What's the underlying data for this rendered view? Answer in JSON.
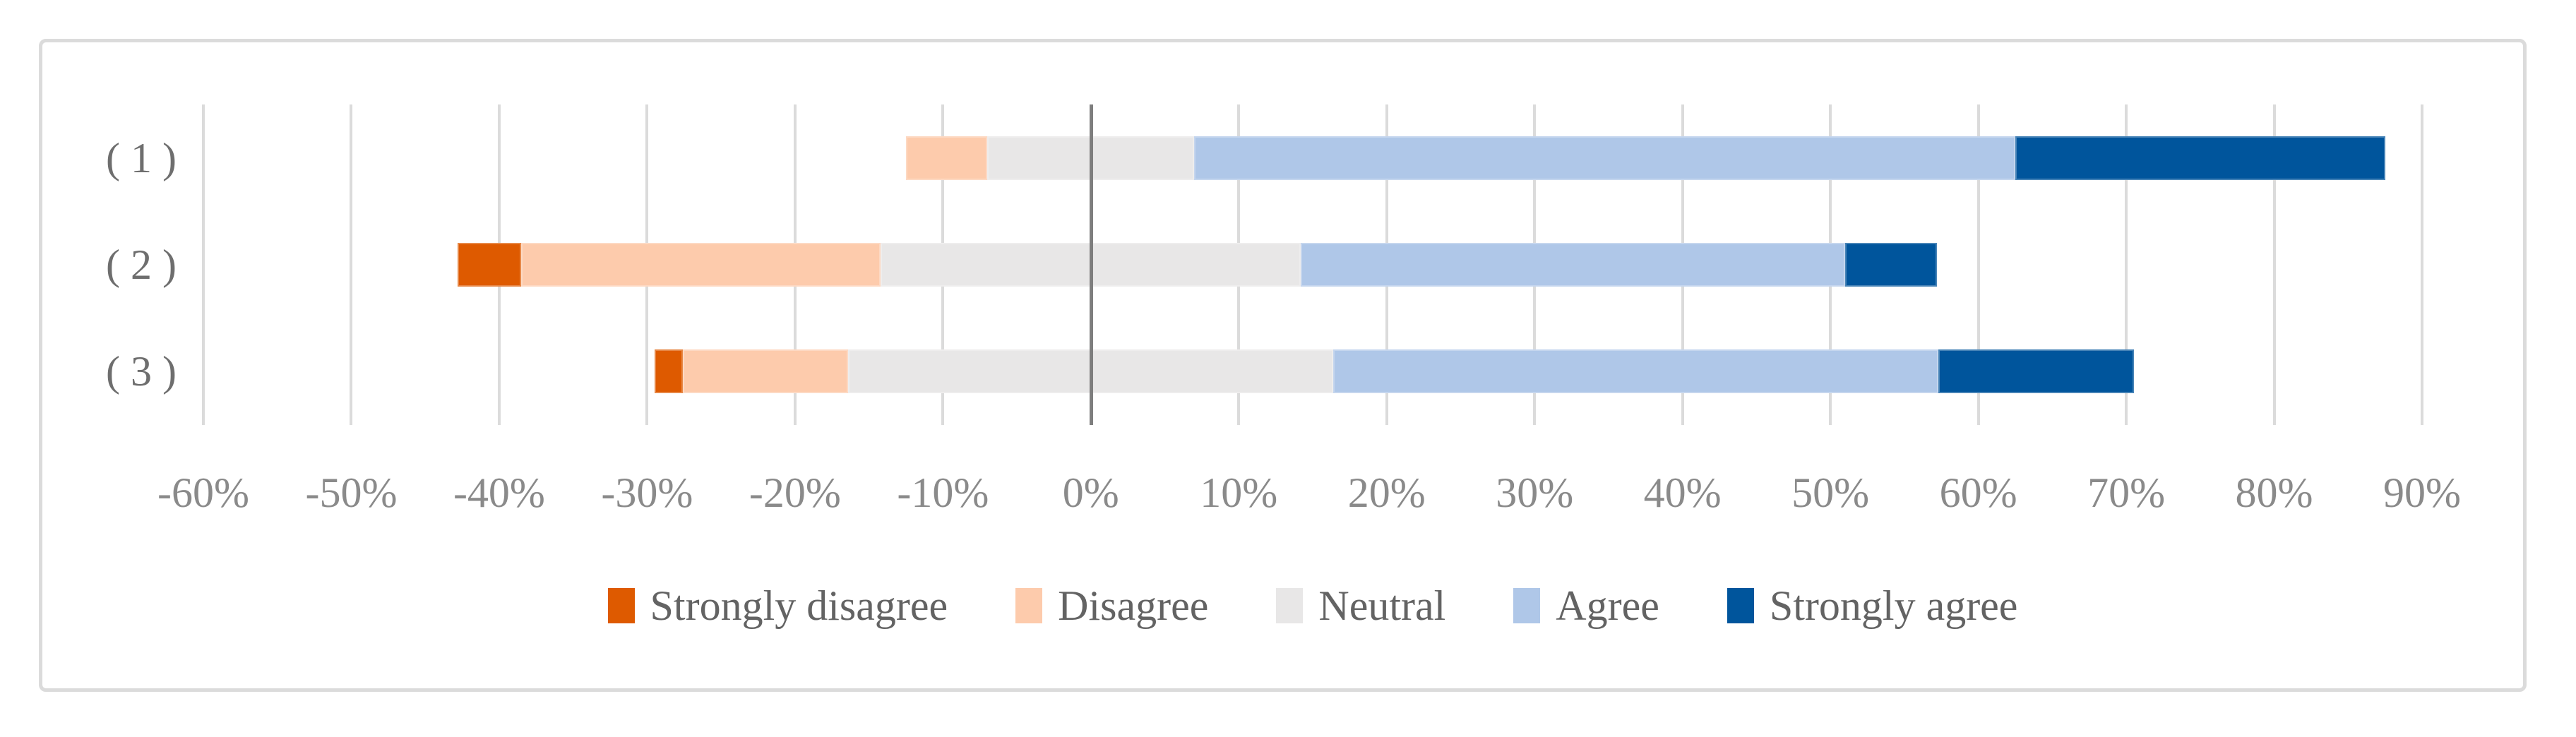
{
  "figure": {
    "background": "#ffffff",
    "border_color": "#DBDBDB"
  },
  "chart_data": {
    "type": "bar",
    "orientation": "horizontal",
    "subtype": "diverging-stacked-likert",
    "title": "",
    "xlabel": "",
    "ylabel": "",
    "categories": [
      "( 1 )",
      "( 2 )",
      "( 3 )"
    ],
    "series": [
      {
        "name": "Strongly disagree",
        "color": "#DE5A00",
        "values": [
          0,
          4.3,
          1.9
        ]
      },
      {
        "name": "Disagree",
        "color": "#FDCBAC",
        "values": [
          5.5,
          24.3,
          11.2
        ]
      },
      {
        "name": "Neutral",
        "color": "#E8E7E7",
        "values": [
          14.0,
          28.4,
          32.8
        ]
      },
      {
        "name": "Agree",
        "color": "#AFC7E8",
        "values": [
          55.5,
          36.8,
          40.9
        ]
      },
      {
        "name": "Strongly agree",
        "color": "#00559C",
        "values": [
          25.0,
          6.2,
          13.2
        ]
      }
    ],
    "neutral_split_on_zero": true,
    "row_baseline_offsets": [
      -12.5,
      -42.8,
      -29.5
    ],
    "xlim": [
      -60,
      90
    ],
    "x_tick_step": 10,
    "x_ticks": [
      "-60%",
      "-50%",
      "-40%",
      "-30%",
      "-20%",
      "-10%",
      "0%",
      "10%",
      "20%",
      "30%",
      "40%",
      "50%",
      "60%",
      "70%",
      "80%",
      "90%"
    ],
    "grid": "vertical",
    "gridline_color": "#DBDBDB",
    "zero_line_color": "#7E7E7E",
    "tick_text_color": "#8A8A8A",
    "category_text_color": "#6E6E6E",
    "legend_position": "bottom",
    "legend_text_color": "#636363"
  }
}
